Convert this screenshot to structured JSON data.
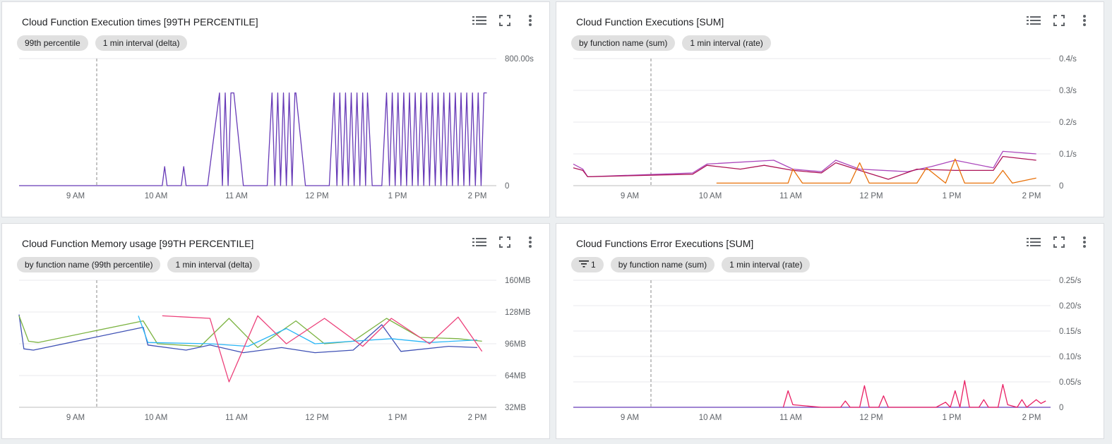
{
  "panels": [
    {
      "title": "Cloud Function Execution times [99TH PERCENTILE]",
      "chips": [
        "99th percentile",
        "1 min interval (delta)"
      ],
      "filter_count": null,
      "chart_data": {
        "type": "line",
        "x_labels": [
          "9 AM",
          "10 AM",
          "11 AM",
          "12 PM",
          "1 PM",
          "2 PM"
        ],
        "y_labels": [
          "800.00s",
          "0"
        ],
        "series": [
          {
            "color": "#673ab7",
            "pattern": "square",
            "base": 0.0,
            "high": 0.73,
            "points": [
              [
                0.0,
                0.0
              ],
              [
                0.3,
                0.0
              ],
              [
                0.305,
                0.15
              ],
              [
                0.31,
                0.0
              ],
              [
                0.34,
                0.0
              ],
              [
                0.345,
                0.15
              ],
              [
                0.35,
                0.0
              ],
              [
                0.395,
                0.0
              ],
              [
                0.4,
                0.15
              ],
              [
                0.42,
                0.73
              ],
              [
                0.45,
                0.73
              ],
              [
                0.47,
                0.0
              ],
              [
                0.52,
                0.0
              ],
              [
                0.53,
                0.73
              ],
              [
                0.58,
                0.73
              ],
              [
                0.6,
                0.0
              ],
              [
                0.65,
                0.0
              ],
              [
                0.66,
                0.73
              ],
              [
                0.73,
                0.73
              ],
              [
                0.74,
                0.0
              ],
              [
                0.76,
                0.0
              ],
              [
                0.77,
                0.73
              ],
              [
                0.98,
                0.73
              ]
            ]
          }
        ]
      }
    },
    {
      "title": "Cloud Function Executions [SUM]",
      "chips": [
        "by function name (sum)",
        "1 min interval (rate)"
      ],
      "filter_count": null,
      "chart_data": {
        "type": "line",
        "x_labels": [
          "9 AM",
          "10 AM",
          "11 AM",
          "12 PM",
          "1 PM",
          "2 PM"
        ],
        "y_labels": [
          "0.4/s",
          "0.3/s",
          "0.2/s",
          "0.1/s",
          "0"
        ],
        "series": [
          {
            "color": "#ab47bc",
            "points": [
              [
                0.0,
                0.17
              ],
              [
                0.02,
                0.13
              ],
              [
                0.03,
                0.07
              ],
              [
                0.25,
                0.1
              ],
              [
                0.28,
                0.17
              ],
              [
                0.42,
                0.2
              ],
              [
                0.46,
                0.13
              ],
              [
                0.52,
                0.11
              ],
              [
                0.55,
                0.2
              ],
              [
                0.6,
                0.13
              ],
              [
                0.7,
                0.11
              ],
              [
                0.75,
                0.15
              ],
              [
                0.8,
                0.2
              ],
              [
                0.88,
                0.14
              ],
              [
                0.9,
                0.27
              ],
              [
                0.97,
                0.25
              ]
            ]
          },
          {
            "color": "#ad1457",
            "points": [
              [
                0.0,
                0.14
              ],
              [
                0.02,
                0.12
              ],
              [
                0.03,
                0.07
              ],
              [
                0.25,
                0.09
              ],
              [
                0.28,
                0.16
              ],
              [
                0.35,
                0.13
              ],
              [
                0.4,
                0.16
              ],
              [
                0.46,
                0.12
              ],
              [
                0.52,
                0.1
              ],
              [
                0.55,
                0.18
              ],
              [
                0.6,
                0.12
              ],
              [
                0.66,
                0.05
              ],
              [
                0.72,
                0.13
              ],
              [
                0.8,
                0.12
              ],
              [
                0.88,
                0.12
              ],
              [
                0.9,
                0.23
              ],
              [
                0.97,
                0.2
              ]
            ]
          },
          {
            "color": "#e8710a",
            "points": [
              [
                0.3,
                0.02
              ],
              [
                0.45,
                0.02
              ],
              [
                0.46,
                0.13
              ],
              [
                0.48,
                0.02
              ],
              [
                0.58,
                0.02
              ],
              [
                0.6,
                0.18
              ],
              [
                0.62,
                0.02
              ],
              [
                0.72,
                0.02
              ],
              [
                0.74,
                0.14
              ],
              [
                0.78,
                0.02
              ],
              [
                0.8,
                0.21
              ],
              [
                0.82,
                0.02
              ],
              [
                0.88,
                0.02
              ],
              [
                0.9,
                0.12
              ],
              [
                0.92,
                0.02
              ],
              [
                0.97,
                0.06
              ]
            ]
          }
        ]
      }
    },
    {
      "title": "Cloud Function Memory usage [99TH PERCENTILE]",
      "chips": [
        "by function name (99th percentile)",
        "1 min interval (delta)"
      ],
      "filter_count": null,
      "chart_data": {
        "type": "line",
        "x_labels": [
          "9 AM",
          "10 AM",
          "11 AM",
          "12 PM",
          "1 PM",
          "2 PM"
        ],
        "y_labels": [
          "160MB",
          "128MB",
          "96MB",
          "64MB",
          "32MB"
        ],
        "series": [
          {
            "color": "#3f51b5",
            "points": [
              [
                0.0,
                0.73
              ],
              [
                0.01,
                0.46
              ],
              [
                0.03,
                0.45
              ],
              [
                0.26,
                0.63
              ],
              [
                0.27,
                0.49
              ],
              [
                0.35,
                0.45
              ],
              [
                0.4,
                0.49
              ],
              [
                0.47,
                0.43
              ],
              [
                0.55,
                0.47
              ],
              [
                0.62,
                0.43
              ],
              [
                0.7,
                0.45
              ],
              [
                0.76,
                0.65
              ],
              [
                0.8,
                0.44
              ],
              [
                0.9,
                0.48
              ],
              [
                0.96,
                0.47
              ]
            ]
          },
          {
            "color": "#7cb342",
            "points": [
              [
                0.0,
                0.72
              ],
              [
                0.02,
                0.52
              ],
              [
                0.04,
                0.51
              ],
              [
                0.26,
                0.68
              ],
              [
                0.29,
                0.5
              ],
              [
                0.38,
                0.48
              ],
              [
                0.44,
                0.7
              ],
              [
                0.5,
                0.47
              ],
              [
                0.58,
                0.68
              ],
              [
                0.64,
                0.5
              ],
              [
                0.7,
                0.52
              ],
              [
                0.77,
                0.7
              ],
              [
                0.84,
                0.55
              ],
              [
                0.92,
                0.54
              ],
              [
                0.97,
                0.52
              ]
            ]
          },
          {
            "color": "#29b6f6",
            "points": [
              [
                0.25,
                0.72
              ],
              [
                0.27,
                0.51
              ],
              [
                0.4,
                0.5
              ],
              [
                0.48,
                0.48
              ],
              [
                0.56,
                0.62
              ],
              [
                0.62,
                0.5
              ],
              [
                0.7,
                0.52
              ],
              [
                0.78,
                0.54
              ],
              [
                0.86,
                0.51
              ],
              [
                0.96,
                0.53
              ]
            ]
          },
          {
            "color": "#ec407a",
            "points": [
              [
                0.3,
                0.72
              ],
              [
                0.4,
                0.7
              ],
              [
                0.44,
                0.2
              ],
              [
                0.5,
                0.72
              ],
              [
                0.56,
                0.5
              ],
              [
                0.64,
                0.7
              ],
              [
                0.72,
                0.48
              ],
              [
                0.78,
                0.7
              ],
              [
                0.86,
                0.5
              ],
              [
                0.92,
                0.71
              ],
              [
                0.97,
                0.44
              ]
            ]
          }
        ]
      }
    },
    {
      "title": "Cloud Functions Error Executions [SUM]",
      "chips": [
        "by function name (sum)",
        "1 min interval (rate)"
      ],
      "filter_count": "1",
      "chart_data": {
        "type": "line",
        "x_labels": [
          "9 AM",
          "10 AM",
          "11 AM",
          "12 PM",
          "1 PM",
          "2 PM"
        ],
        "y_labels": [
          "0.25/s",
          "0.20/s",
          "0.15/s",
          "0.10/s",
          "0.05/s",
          "0"
        ],
        "series": [
          {
            "color": "#673ab7",
            "points": [
              [
                0.0,
                0.0
              ],
              [
                1.0,
                0.0
              ]
            ]
          },
          {
            "color": "#e91e63",
            "points": [
              [
                0.44,
                0.0
              ],
              [
                0.45,
                0.13
              ],
              [
                0.46,
                0.02
              ],
              [
                0.52,
                0.0
              ],
              [
                0.56,
                0.0
              ],
              [
                0.57,
                0.05
              ],
              [
                0.58,
                0.0
              ],
              [
                0.6,
                0.0
              ],
              [
                0.61,
                0.17
              ],
              [
                0.62,
                0.0
              ],
              [
                0.64,
                0.0
              ],
              [
                0.65,
                0.09
              ],
              [
                0.66,
                0.0
              ],
              [
                0.76,
                0.0
              ],
              [
                0.78,
                0.04
              ],
              [
                0.79,
                0.0
              ],
              [
                0.8,
                0.13
              ],
              [
                0.81,
                0.0
              ],
              [
                0.82,
                0.21
              ],
              [
                0.83,
                0.0
              ],
              [
                0.85,
                0.0
              ],
              [
                0.86,
                0.06
              ],
              [
                0.87,
                0.0
              ],
              [
                0.89,
                0.0
              ],
              [
                0.9,
                0.18
              ],
              [
                0.91,
                0.02
              ],
              [
                0.93,
                0.0
              ],
              [
                0.94,
                0.06
              ],
              [
                0.95,
                0.0
              ],
              [
                0.97,
                0.06
              ],
              [
                0.98,
                0.03
              ],
              [
                0.99,
                0.05
              ]
            ]
          }
        ]
      }
    }
  ]
}
